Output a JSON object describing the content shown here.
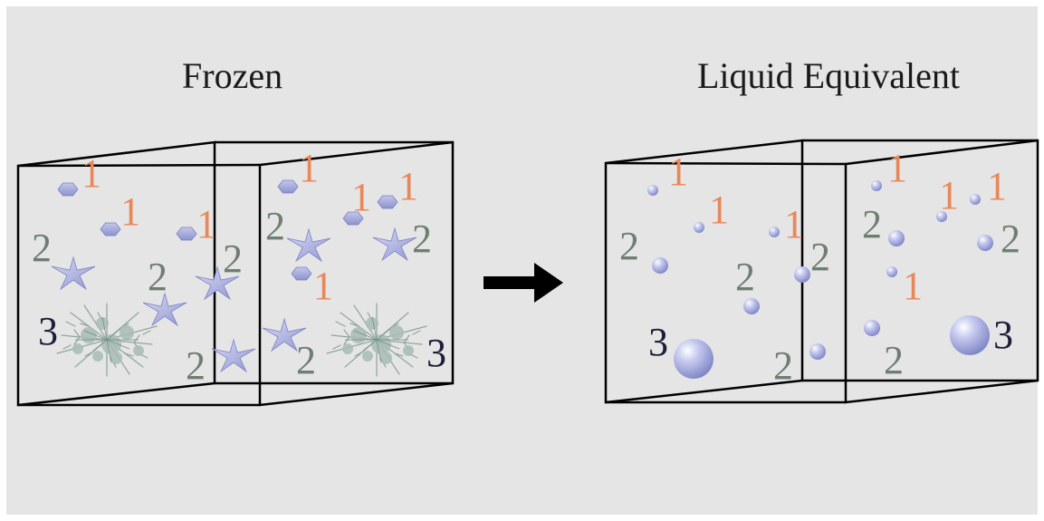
{
  "titles": {
    "frozen": "Frozen",
    "liquid": "Liquid Equivalent"
  },
  "colors": {
    "background": "#e5e5e5",
    "label_1": "#e8885a",
    "label_2": "#6e7f72",
    "label_3": "#1d1f3a",
    "particle": "#a9aee0",
    "ice_crystal": "#9fb5ad",
    "box_line": "#000000",
    "arrow": "#000000"
  },
  "frozen_box": {
    "labels": [
      "1",
      "1",
      "1",
      "1",
      "1",
      "1",
      "1",
      "2",
      "2",
      "2",
      "2",
      "2",
      "2",
      "3",
      "3"
    ],
    "particles": [
      "hexagon-icon",
      "hexagon-icon",
      "hexagon-icon",
      "hexagon-icon",
      "hexagon-icon",
      "hexagon-icon",
      "hexagon-icon",
      "star-icon",
      "star-icon",
      "star-icon",
      "star-icon",
      "star-icon",
      "star-icon",
      "snowflake-cluster-icon",
      "snowflake-cluster-icon"
    ]
  },
  "liquid_box": {
    "labels": [
      "1",
      "1",
      "1",
      "1",
      "1",
      "1",
      "1",
      "2",
      "2",
      "2",
      "2",
      "2",
      "2",
      "3",
      "3"
    ],
    "particles": [
      "small-sphere-icon",
      "medium-sphere-icon",
      "large-sphere-icon"
    ]
  }
}
